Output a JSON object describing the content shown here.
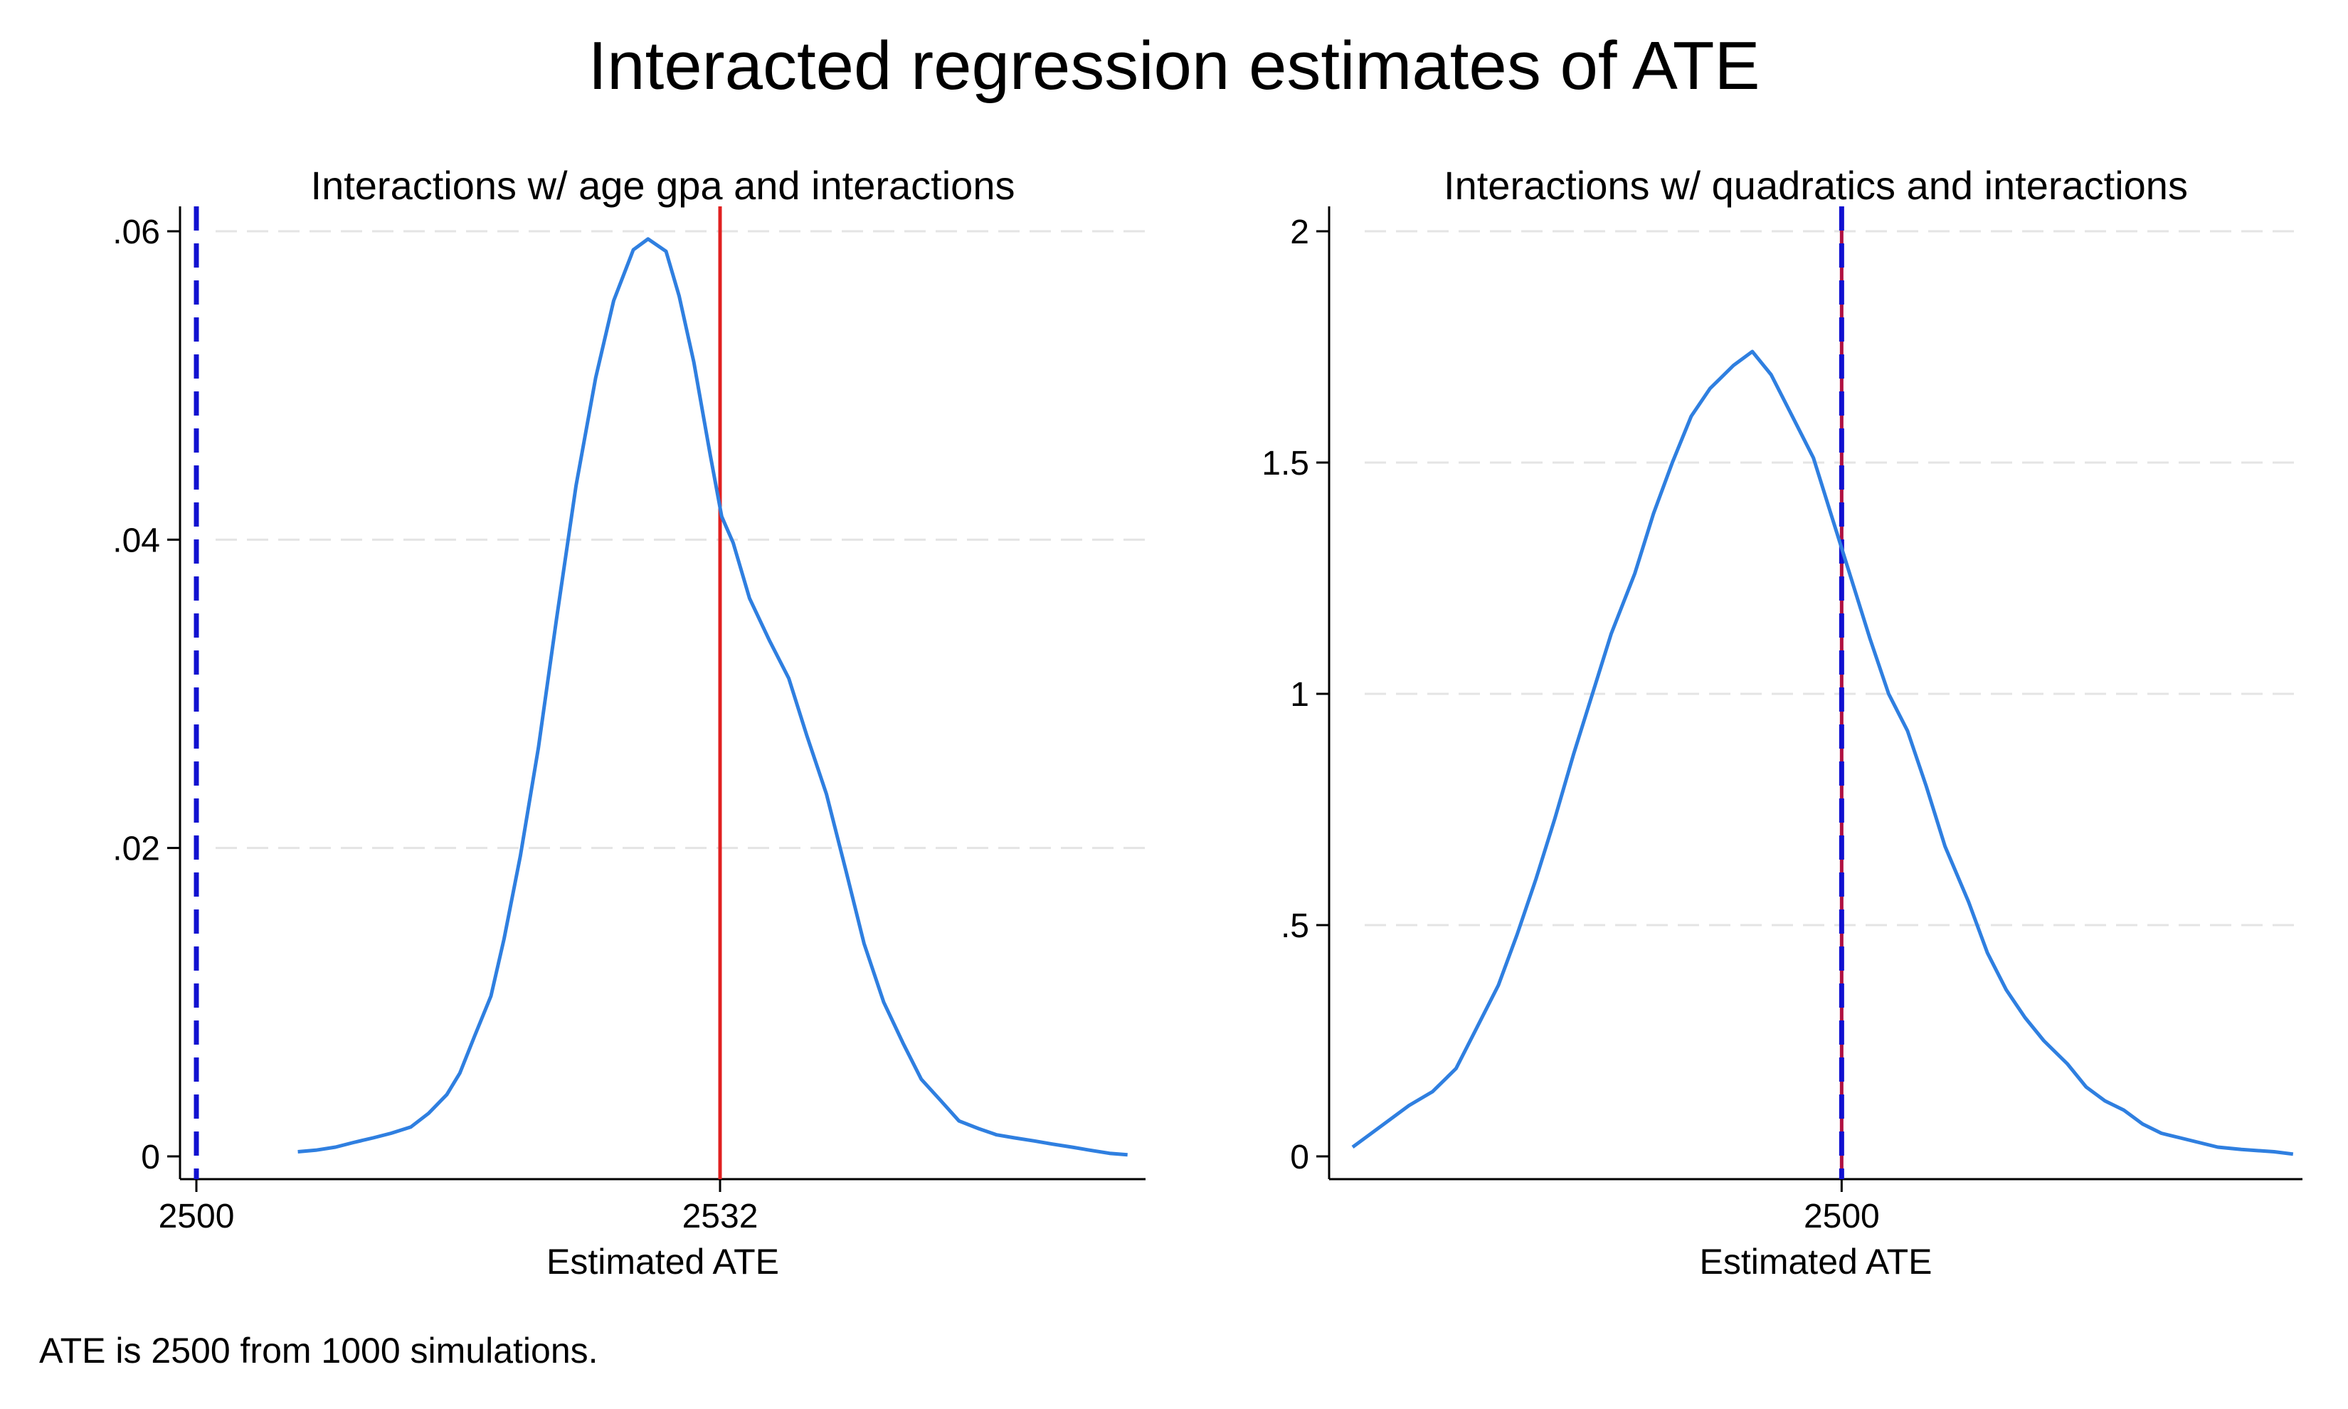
{
  "figure": {
    "title": "Interacted regression estimates of ATE",
    "note": "ATE is 2500 from 1000 simulations."
  },
  "colors": {
    "density": "#2f7fe0",
    "estimate_line": "#e02020",
    "true_ate_line": "#1010d0",
    "overlap_line": "#b01040",
    "grid": "#e4e4e4",
    "axis": "#000000"
  },
  "chart_data": [
    {
      "type": "line",
      "title": "Interactions w/ age gpa and interactions",
      "xlabel": "Estimated ATE",
      "ylabel": "",
      "xlim": [
        2499.0,
        2558.0
      ],
      "ylim": [
        0,
        0.06
      ],
      "xticks": [
        2500,
        2532
      ],
      "yticks": [
        0,
        0.02,
        0.04,
        0.06
      ],
      "ytick_labels": [
        "0",
        ".02",
        ".04",
        ".06"
      ],
      "grid": true,
      "vlines": [
        {
          "x": 2500,
          "style": "dashed",
          "color": "#1010d0"
        },
        {
          "x": 2532,
          "style": "solid",
          "color": "#e02020"
        }
      ],
      "series": [
        {
          "x": [
            2506.2,
            2507.3,
            2508.5,
            2509.6,
            2510.8,
            2511.9,
            2513.1,
            2514.2,
            2515.3,
            2516.1,
            2517.0,
            2518.0,
            2518.8,
            2519.8,
            2520.9,
            2522.0,
            2523.2,
            2524.4,
            2525.5,
            2526.7,
            2527.6,
            2528.7,
            2529.5,
            2530.4,
            2531.4,
            2532.1,
            2532.8,
            2533.8,
            2535.0,
            2536.2,
            2537.3,
            2538.5,
            2539.7,
            2540.8,
            2542.0,
            2543.2,
            2544.3,
            2545.5,
            2546.6,
            2547.8,
            2548.9,
            2550.0,
            2551.2,
            2552.3,
            2553.5,
            2554.6,
            2555.8,
            2556.9
          ],
          "y": [
            0.0003,
            0.0004,
            0.0006,
            0.0009,
            0.0012,
            0.0015,
            0.0019,
            0.0028,
            0.004,
            0.0054,
            0.0078,
            0.0104,
            0.0141,
            0.0195,
            0.0265,
            0.0348,
            0.0435,
            0.0505,
            0.0555,
            0.0588,
            0.0595,
            0.0587,
            0.0558,
            0.0515,
            0.0455,
            0.0415,
            0.0398,
            0.0362,
            0.0335,
            0.031,
            0.0273,
            0.0235,
            0.0185,
            0.0138,
            0.01,
            0.0073,
            0.005,
            0.0036,
            0.0023,
            0.0018,
            0.0014,
            0.0012,
            0.001,
            0.0008,
            0.0006,
            0.0004,
            0.0002,
            0.0001
          ]
        }
      ]
    },
    {
      "type": "line",
      "title": "Interactions w/ quadratics and interactions",
      "xlabel": "Estimated ATE",
      "ylabel": "",
      "xlim": [
        2498.91,
        2500.98
      ],
      "ylim": [
        0,
        2
      ],
      "xticks": [
        2500
      ],
      "yticks": [
        0,
        0.5,
        1,
        1.5,
        2
      ],
      "ytick_labels": [
        "0",
        ".5",
        "1",
        "1.5",
        "2"
      ],
      "grid": true,
      "vlines": [
        {
          "x": 2500,
          "style": "solid",
          "color": "#b01040"
        },
        {
          "x": 2500,
          "style": "dashed",
          "color": "#1010d0"
        }
      ],
      "series": [
        {
          "x": [
            2498.96,
            2499.0,
            2499.04,
            2499.08,
            2499.13,
            2499.18,
            2499.22,
            2499.27,
            2499.31,
            2499.35,
            2499.39,
            2499.43,
            2499.47,
            2499.51,
            2499.56,
            2499.6,
            2499.64,
            2499.68,
            2499.72,
            2499.77,
            2499.81,
            2499.85,
            2499.89,
            2499.94,
            2499.98,
            2500.02,
            2500.06,
            2500.1,
            2500.14,
            2500.18,
            2500.22,
            2500.27,
            2500.31,
            2500.35,
            2500.39,
            2500.43,
            2500.48,
            2500.52,
            2500.56,
            2500.6,
            2500.64,
            2500.68,
            2500.72,
            2500.76,
            2500.8,
            2500.85,
            2500.92,
            2500.96
          ],
          "y": [
            0.02,
            0.05,
            0.08,
            0.11,
            0.14,
            0.19,
            0.27,
            0.37,
            0.48,
            0.6,
            0.73,
            0.87,
            1.0,
            1.13,
            1.26,
            1.39,
            1.5,
            1.6,
            1.66,
            1.71,
            1.74,
            1.69,
            1.61,
            1.51,
            1.38,
            1.25,
            1.12,
            1.0,
            0.92,
            0.8,
            0.67,
            0.55,
            0.44,
            0.36,
            0.3,
            0.25,
            0.2,
            0.15,
            0.12,
            0.1,
            0.07,
            0.05,
            0.04,
            0.03,
            0.02,
            0.015,
            0.01,
            0.005
          ]
        }
      ]
    }
  ]
}
